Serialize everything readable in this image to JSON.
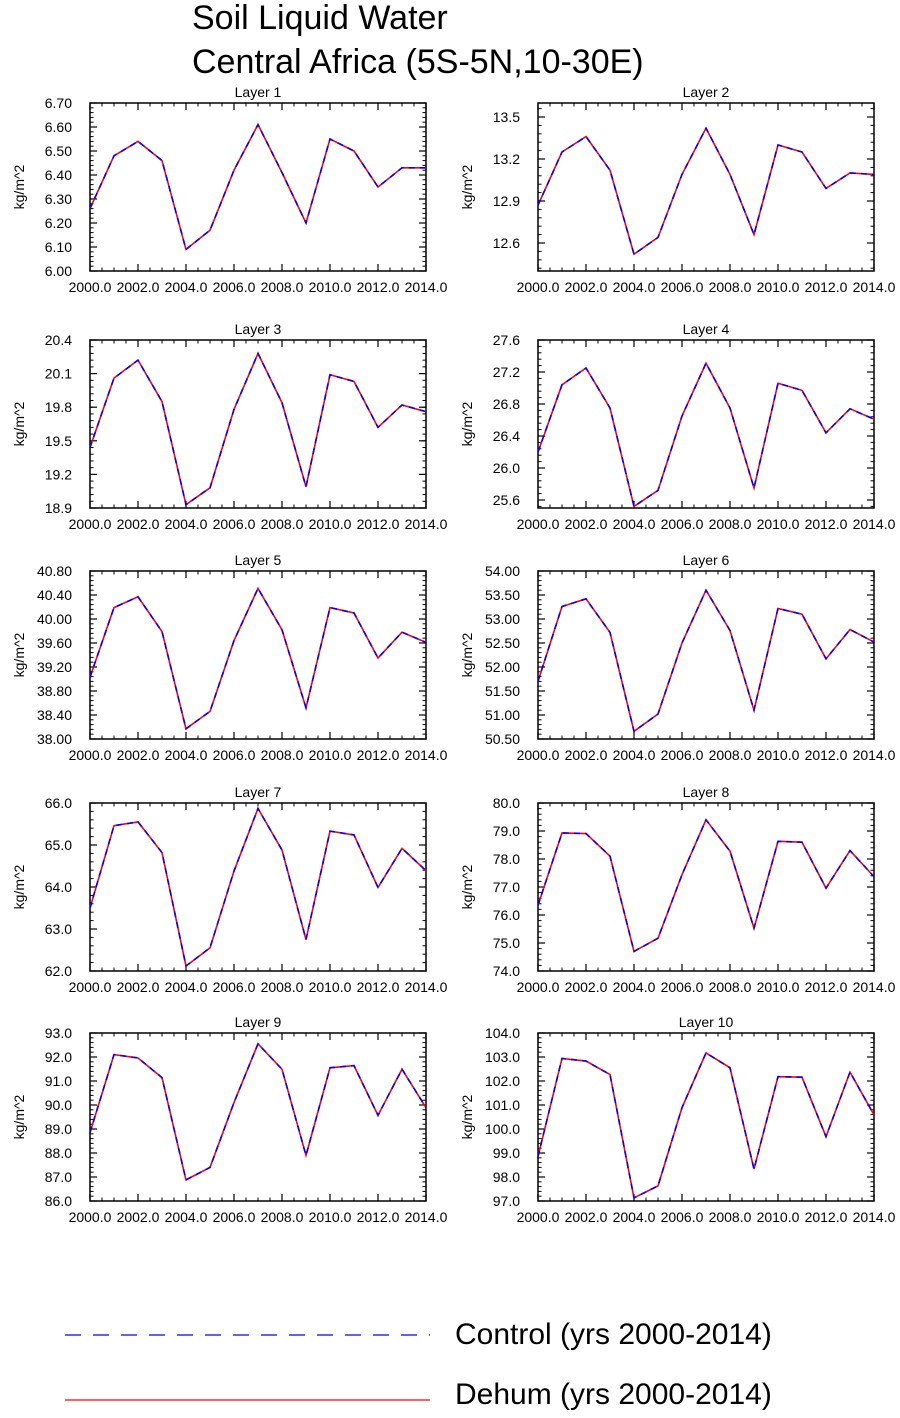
{
  "title": {
    "line1": "Soil Liquid Water",
    "line2": "Central Africa (5S-5N,10-30E)"
  },
  "colors": {
    "control": "#0000ff",
    "dehum": "#ff0000",
    "axis": "#000000"
  },
  "legend": [
    {
      "label": "Control (yrs 2000-2014)",
      "color": "#0000ff",
      "style": "dashed"
    },
    {
      "label": "Dehum (yrs 2000-2014)",
      "color": "#ff0000",
      "style": "solid"
    }
  ],
  "chart_data": [
    {
      "type": "line",
      "title": "Layer 1",
      "ylabel": "kg/m^2",
      "x": [
        2000,
        2001,
        2002,
        2003,
        2004,
        2005,
        2006,
        2007,
        2008,
        2009,
        2010,
        2011,
        2012,
        2013,
        2014
      ],
      "xlim": [
        2000,
        2014
      ],
      "xticks": [
        2000,
        2002,
        2004,
        2006,
        2008,
        2010,
        2012,
        2014
      ],
      "xticklabels": [
        "2000.0",
        "2002.0",
        "2004.0",
        "2006.0",
        "2008.0",
        "2010.0",
        "2012.0",
        "2014.0"
      ],
      "ylim": [
        6.0,
        6.7
      ],
      "yticks": [
        6.0,
        6.1,
        6.2,
        6.3,
        6.4,
        6.5,
        6.6,
        6.7
      ],
      "yticklabels": [
        "6.00",
        "6.10",
        "6.20",
        "6.30",
        "6.40",
        "6.50",
        "6.60",
        "6.70"
      ],
      "series": [
        {
          "name": "Control (yrs 2000-2014)",
          "values": [
            6.26,
            6.48,
            6.54,
            6.46,
            6.09,
            6.17,
            6.42,
            6.61,
            6.41,
            6.2,
            6.55,
            6.5,
            6.35,
            6.43,
            6.43
          ]
        },
        {
          "name": "Dehum (yrs 2000-2014)",
          "values": [
            6.26,
            6.48,
            6.54,
            6.46,
            6.09,
            6.17,
            6.42,
            6.61,
            6.41,
            6.2,
            6.55,
            6.5,
            6.35,
            6.43,
            6.43
          ]
        }
      ]
    },
    {
      "type": "line",
      "title": "Layer 2",
      "ylabel": "kg/m^2",
      "x": [
        2000,
        2001,
        2002,
        2003,
        2004,
        2005,
        2006,
        2007,
        2008,
        2009,
        2010,
        2011,
        2012,
        2013,
        2014
      ],
      "xlim": [
        2000,
        2014
      ],
      "xticks": [
        2000,
        2002,
        2004,
        2006,
        2008,
        2010,
        2012,
        2014
      ],
      "xticklabels": [
        "2000.0",
        "2002.0",
        "2004.0",
        "2006.0",
        "2008.0",
        "2010.0",
        "2012.0",
        "2014.0"
      ],
      "ylim": [
        12.4,
        13.6
      ],
      "yticks": [
        12.6,
        12.9,
        13.2,
        13.5
      ],
      "yticklabels": [
        "12.6",
        "12.9",
        "13.2",
        "13.5"
      ],
      "series": [
        {
          "name": "Control (yrs 2000-2014)",
          "values": [
            12.87,
            13.25,
            13.36,
            13.12,
            12.52,
            12.64,
            13.09,
            13.42,
            13.09,
            12.66,
            13.3,
            13.25,
            12.99,
            13.1,
            13.09
          ]
        },
        {
          "name": "Dehum (yrs 2000-2014)",
          "values": [
            12.87,
            13.25,
            13.36,
            13.12,
            12.52,
            12.64,
            13.09,
            13.42,
            13.09,
            12.66,
            13.3,
            13.25,
            12.99,
            13.1,
            13.09
          ]
        }
      ]
    },
    {
      "type": "line",
      "title": "Layer 3",
      "ylabel": "kg/m^2",
      "x": [
        2000,
        2001,
        2002,
        2003,
        2004,
        2005,
        2006,
        2007,
        2008,
        2009,
        2010,
        2011,
        2012,
        2013,
        2014
      ],
      "xlim": [
        2000,
        2014
      ],
      "xticks": [
        2000,
        2002,
        2004,
        2006,
        2008,
        2010,
        2012,
        2014
      ],
      "xticklabels": [
        "2000.0",
        "2002.0",
        "2004.0",
        "2006.0",
        "2008.0",
        "2010.0",
        "2012.0",
        "2014.0"
      ],
      "ylim": [
        18.9,
        20.4
      ],
      "yticks": [
        18.9,
        19.2,
        19.5,
        19.8,
        20.1,
        20.4
      ],
      "yticklabels": [
        "18.9",
        "19.2",
        "19.5",
        "19.8",
        "20.1",
        "20.4"
      ],
      "series": [
        {
          "name": "Control (yrs 2000-2014)",
          "values": [
            19.44,
            20.06,
            20.22,
            19.85,
            18.93,
            19.08,
            19.78,
            20.28,
            19.84,
            19.09,
            20.09,
            20.03,
            19.62,
            19.82,
            19.76
          ]
        },
        {
          "name": "Dehum (yrs 2000-2014)",
          "values": [
            19.44,
            20.06,
            20.22,
            19.85,
            18.93,
            19.08,
            19.78,
            20.28,
            19.84,
            19.09,
            20.09,
            20.03,
            19.62,
            19.82,
            19.76
          ]
        }
      ]
    },
    {
      "type": "line",
      "title": "Layer 4",
      "ylabel": "kg/m^2",
      "x": [
        2000,
        2001,
        2002,
        2003,
        2004,
        2005,
        2006,
        2007,
        2008,
        2009,
        2010,
        2011,
        2012,
        2013,
        2014
      ],
      "xlim": [
        2000,
        2014
      ],
      "xticks": [
        2000,
        2002,
        2004,
        2006,
        2008,
        2010,
        2012,
        2014
      ],
      "xticklabels": [
        "2000.0",
        "2002.0",
        "2004.0",
        "2006.0",
        "2008.0",
        "2010.0",
        "2012.0",
        "2014.0"
      ],
      "ylim": [
        25.5,
        27.6
      ],
      "yticks": [
        25.6,
        26.0,
        26.4,
        26.8,
        27.2,
        27.6
      ],
      "yticklabels": [
        "25.6",
        "26.0",
        "26.4",
        "26.8",
        "27.2",
        "27.6"
      ],
      "series": [
        {
          "name": "Control (yrs 2000-2014)",
          "values": [
            26.2,
            27.04,
            27.25,
            26.75,
            25.52,
            25.72,
            26.65,
            27.31,
            26.75,
            25.75,
            27.06,
            26.97,
            26.44,
            26.74,
            26.61
          ]
        },
        {
          "name": "Dehum (yrs 2000-2014)",
          "values": [
            26.2,
            27.04,
            27.25,
            26.75,
            25.52,
            25.72,
            26.65,
            27.31,
            26.75,
            25.75,
            27.06,
            26.97,
            26.44,
            26.74,
            26.61
          ]
        }
      ]
    },
    {
      "type": "line",
      "title": "Layer 5",
      "ylabel": "kg/m^2",
      "x": [
        2000,
        2001,
        2002,
        2003,
        2004,
        2005,
        2006,
        2007,
        2008,
        2009,
        2010,
        2011,
        2012,
        2013,
        2014
      ],
      "xlim": [
        2000,
        2014
      ],
      "xticks": [
        2000,
        2002,
        2004,
        2006,
        2008,
        2010,
        2012,
        2014
      ],
      "xticklabels": [
        "2000.0",
        "2002.0",
        "2004.0",
        "2006.0",
        "2008.0",
        "2010.0",
        "2012.0",
        "2014.0"
      ],
      "ylim": [
        38.0,
        40.8
      ],
      "yticks": [
        38.0,
        38.4,
        38.8,
        39.2,
        39.6,
        40.0,
        40.4,
        40.8
      ],
      "yticklabels": [
        "38.00",
        "38.40",
        "38.80",
        "39.20",
        "39.60",
        "40.00",
        "40.40",
        "40.80"
      ],
      "series": [
        {
          "name": "Control (yrs 2000-2014)",
          "values": [
            39.03,
            40.19,
            40.37,
            39.79,
            38.17,
            38.46,
            39.64,
            40.51,
            39.82,
            38.52,
            40.19,
            40.1,
            39.35,
            39.78,
            39.61
          ]
        },
        {
          "name": "Dehum (yrs 2000-2014)",
          "values": [
            39.03,
            40.19,
            40.37,
            39.79,
            38.17,
            38.46,
            39.64,
            40.51,
            39.82,
            38.52,
            40.19,
            40.1,
            39.35,
            39.78,
            39.61
          ]
        }
      ]
    },
    {
      "type": "line",
      "title": "Layer 6",
      "ylabel": "kg/m^2",
      "x": [
        2000,
        2001,
        2002,
        2003,
        2004,
        2005,
        2006,
        2007,
        2008,
        2009,
        2010,
        2011,
        2012,
        2013,
        2014
      ],
      "xlim": [
        2000,
        2014
      ],
      "xticks": [
        2000,
        2002,
        2004,
        2006,
        2008,
        2010,
        2012,
        2014
      ],
      "xticklabels": [
        "2000.0",
        "2002.0",
        "2004.0",
        "2006.0",
        "2008.0",
        "2010.0",
        "2012.0",
        "2014.0"
      ],
      "ylim": [
        50.5,
        54.0
      ],
      "yticks": [
        50.5,
        51.0,
        51.5,
        52.0,
        52.5,
        53.0,
        53.5,
        54.0
      ],
      "yticklabels": [
        "50.50",
        "51.00",
        "51.50",
        "52.00",
        "52.50",
        "53.00",
        "53.50",
        "54.00"
      ],
      "series": [
        {
          "name": "Control (yrs 2000-2014)",
          "values": [
            51.7,
            53.26,
            53.42,
            52.72,
            50.66,
            51.02,
            52.5,
            53.6,
            52.76,
            51.1,
            53.22,
            53.1,
            52.17,
            52.78,
            52.52
          ]
        },
        {
          "name": "Dehum (yrs 2000-2014)",
          "values": [
            51.7,
            53.26,
            53.42,
            52.72,
            50.66,
            51.02,
            52.5,
            53.6,
            52.76,
            51.1,
            53.22,
            53.1,
            52.17,
            52.78,
            52.52
          ]
        }
      ]
    },
    {
      "type": "line",
      "title": "Layer 7",
      "ylabel": "kg/m^2",
      "x": [
        2000,
        2001,
        2002,
        2003,
        2004,
        2005,
        2006,
        2007,
        2008,
        2009,
        2010,
        2011,
        2012,
        2013,
        2014
      ],
      "xlim": [
        2000,
        2014
      ],
      "xticks": [
        2000,
        2002,
        2004,
        2006,
        2008,
        2010,
        2012,
        2014
      ],
      "xticklabels": [
        "2000.0",
        "2002.0",
        "2004.0",
        "2006.0",
        "2008.0",
        "2010.0",
        "2012.0",
        "2014.0"
      ],
      "ylim": [
        62.0,
        66.0
      ],
      "yticks": [
        62.0,
        63.0,
        64.0,
        65.0,
        66.0
      ],
      "yticklabels": [
        "62.0",
        "63.0",
        "64.0",
        "65.0",
        "66.0"
      ],
      "series": [
        {
          "name": "Control (yrs 2000-2014)",
          "values": [
            63.5,
            65.46,
            65.55,
            64.82,
            62.12,
            62.55,
            64.38,
            65.87,
            64.88,
            62.75,
            65.33,
            65.24,
            63.99,
            64.92,
            64.39
          ]
        },
        {
          "name": "Dehum (yrs 2000-2014)",
          "values": [
            63.5,
            65.46,
            65.55,
            64.82,
            62.12,
            62.55,
            64.38,
            65.87,
            64.88,
            62.75,
            65.33,
            65.24,
            63.99,
            64.92,
            64.39
          ]
        }
      ]
    },
    {
      "type": "line",
      "title": "Layer 8",
      "ylabel": "kg/m^2",
      "x": [
        2000,
        2001,
        2002,
        2003,
        2004,
        2005,
        2006,
        2007,
        2008,
        2009,
        2010,
        2011,
        2012,
        2013,
        2014
      ],
      "xlim": [
        2000,
        2014
      ],
      "xticks": [
        2000,
        2002,
        2004,
        2006,
        2008,
        2010,
        2012,
        2014
      ],
      "xticklabels": [
        "2000.0",
        "2002.0",
        "2004.0",
        "2006.0",
        "2008.0",
        "2010.0",
        "2012.0",
        "2014.0"
      ],
      "ylim": [
        74.0,
        80.0
      ],
      "yticks": [
        74.0,
        75.0,
        76.0,
        77.0,
        78.0,
        79.0,
        80.0
      ],
      "yticklabels": [
        "74.0",
        "75.0",
        "76.0",
        "77.0",
        "78.0",
        "79.0",
        "80.0"
      ],
      "series": [
        {
          "name": "Control (yrs 2000-2014)",
          "values": [
            76.35,
            78.93,
            78.91,
            78.1,
            74.7,
            75.17,
            77.44,
            79.4,
            78.28,
            75.53,
            78.63,
            78.6,
            76.96,
            78.3,
            77.37
          ]
        },
        {
          "name": "Dehum (yrs 2000-2014)",
          "values": [
            76.35,
            78.93,
            78.91,
            78.1,
            74.7,
            75.17,
            77.44,
            79.4,
            78.28,
            75.53,
            78.63,
            78.6,
            76.96,
            78.3,
            77.37
          ]
        }
      ]
    },
    {
      "type": "line",
      "title": "Layer 9",
      "ylabel": "kg/m^2",
      "x": [
        2000,
        2001,
        2002,
        2003,
        2004,
        2005,
        2006,
        2007,
        2008,
        2009,
        2010,
        2011,
        2012,
        2013,
        2014
      ],
      "xlim": [
        2000,
        2014
      ],
      "xticks": [
        2000,
        2002,
        2004,
        2006,
        2008,
        2010,
        2012,
        2014
      ],
      "xticklabels": [
        "2000.0",
        "2002.0",
        "2004.0",
        "2006.0",
        "2008.0",
        "2010.0",
        "2012.0",
        "2014.0"
      ],
      "ylim": [
        86.0,
        93.0
      ],
      "yticks": [
        86.0,
        87.0,
        88.0,
        89.0,
        90.0,
        91.0,
        92.0,
        93.0
      ],
      "yticklabels": [
        "86.0",
        "87.0",
        "88.0",
        "89.0",
        "90.0",
        "91.0",
        "92.0",
        "93.0"
      ],
      "series": [
        {
          "name": "Control (yrs 2000-2014)",
          "values": [
            88.85,
            92.1,
            91.96,
            91.14,
            86.88,
            87.4,
            90.1,
            92.55,
            91.49,
            87.9,
            91.55,
            91.64,
            89.57,
            91.49,
            89.89
          ]
        },
        {
          "name": "Dehum (yrs 2000-2014)",
          "values": [
            88.85,
            92.1,
            91.96,
            91.14,
            86.88,
            87.4,
            90.1,
            92.55,
            91.49,
            87.9,
            91.55,
            91.64,
            89.57,
            91.49,
            89.89
          ]
        }
      ]
    },
    {
      "type": "line",
      "title": "Layer 10",
      "ylabel": "kg/m^2",
      "x": [
        2000,
        2001,
        2002,
        2003,
        2004,
        2005,
        2006,
        2007,
        2008,
        2009,
        2010,
        2011,
        2012,
        2013,
        2014
      ],
      "xlim": [
        2000,
        2014
      ],
      "xticks": [
        2000,
        2002,
        2004,
        2006,
        2008,
        2010,
        2012,
        2014
      ],
      "xticklabels": [
        "2000.0",
        "2002.0",
        "2004.0",
        "2006.0",
        "2008.0",
        "2010.0",
        "2012.0",
        "2014.0"
      ],
      "ylim": [
        97.0,
        104.0
      ],
      "yticks": [
        97.0,
        98.0,
        99.0,
        100.0,
        101.0,
        102.0,
        103.0,
        104.0
      ],
      "yticklabels": [
        "97.0",
        "98.0",
        "99.0",
        "100.0",
        "101.0",
        "102.0",
        "103.0",
        "104.0"
      ],
      "series": [
        {
          "name": "Control (yrs 2000-2014)",
          "values": [
            98.85,
            102.94,
            102.83,
            102.27,
            97.13,
            97.63,
            100.89,
            103.17,
            102.55,
            98.33,
            102.18,
            102.16,
            99.68,
            102.37,
            100.59
          ]
        },
        {
          "name": "Dehum (yrs 2000-2014)",
          "values": [
            98.85,
            102.94,
            102.83,
            102.27,
            97.13,
            97.63,
            100.89,
            103.17,
            102.55,
            98.33,
            102.18,
            102.16,
            99.68,
            102.37,
            100.59
          ]
        }
      ]
    }
  ]
}
